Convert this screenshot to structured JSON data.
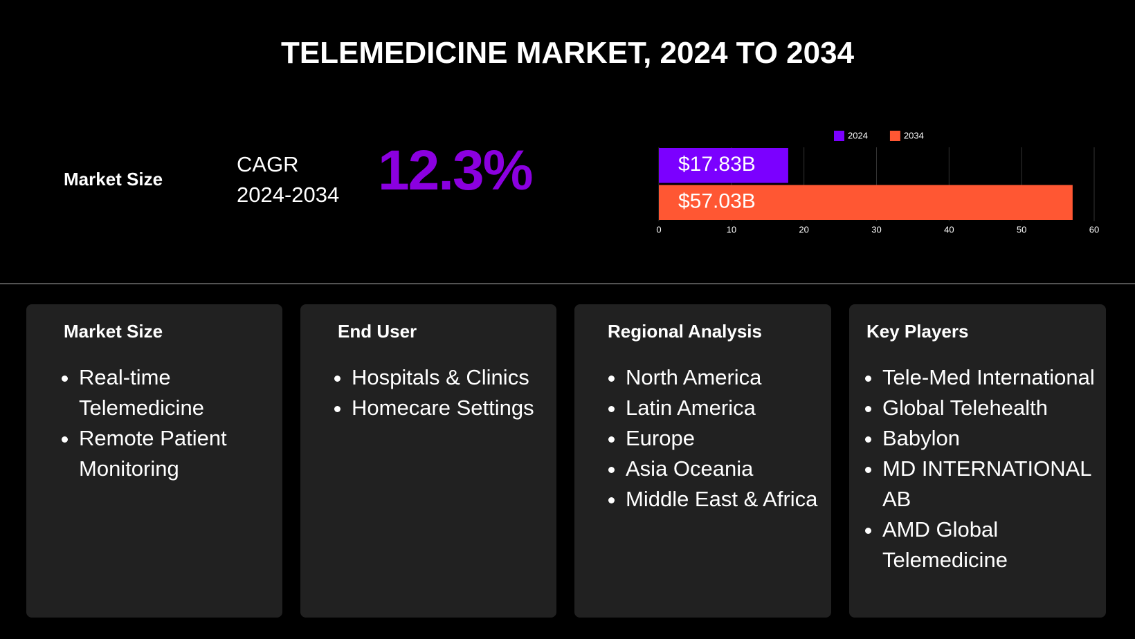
{
  "title": "TELEMEDICINE MARKET, 2024 TO 2034",
  "summary": {
    "label": "Market Size",
    "cagr_label": "CAGR",
    "cagr_period": "2024-2034",
    "cagr_value": "12.3%"
  },
  "chart_data": {
    "type": "bar",
    "orientation": "horizontal",
    "categories": [
      null
    ],
    "series": [
      {
        "name": "2024",
        "color": "#7b00ff",
        "values": [
          17.83
        ],
        "value_labels": [
          "$17.83B"
        ]
      },
      {
        "name": "2034",
        "color": "#ff5733",
        "values": [
          57.03
        ],
        "value_labels": [
          "$57.03B"
        ]
      }
    ],
    "xlim": [
      0,
      60
    ],
    "xticks": [
      0,
      10,
      20,
      30,
      40,
      50,
      60
    ],
    "grid": true,
    "legend": "top"
  },
  "cards": [
    {
      "title": "Market Size",
      "items": [
        "Real-time Telemedicine",
        "Remote Patient Monitoring"
      ]
    },
    {
      "title": "End User",
      "items": [
        "Hospitals & Clinics",
        "Homecare Settings"
      ]
    },
    {
      "title": "Regional Analysis",
      "items": [
        "North America",
        "Latin America",
        "Europe",
        "Asia Oceania",
        "Middle East & Africa"
      ]
    },
    {
      "title": "Key Players",
      "items": [
        "Tele-Med International",
        "Global Telehealth",
        "Babylon",
        "MD INTERNATIONAL AB",
        "AMD Global Telemedicine"
      ]
    }
  ]
}
